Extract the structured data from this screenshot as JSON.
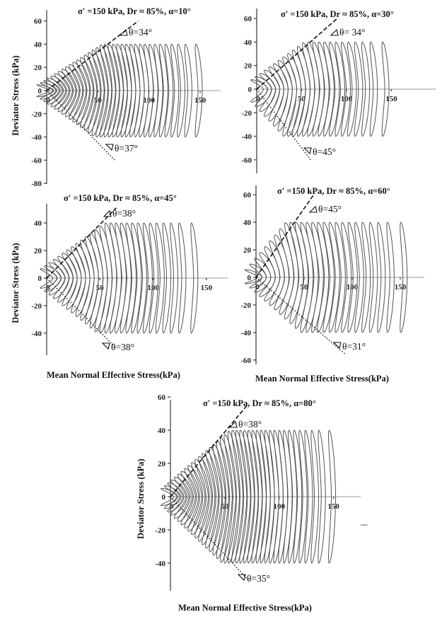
{
  "figure": {
    "x_axis_label": "Mean Normal  Effective Stress(kPa)",
    "y_axis_label": "Deviator Stress (kPa)"
  },
  "chart_data": [
    {
      "type": "line",
      "title": "σ' =150 kPa, Dr ≈ 85%, α=10°",
      "xlabel": "",
      "ylabel": "Deviator Stress (kPa)",
      "xlim": [
        0,
        170
      ],
      "ylim": [
        -80,
        70
      ],
      "x_ticks": [
        0,
        50,
        100,
        150
      ],
      "y_ticks": [
        60,
        40,
        20,
        0,
        -20,
        -40,
        -60,
        -80
      ],
      "cycles": {
        "count": 36,
        "p_start": 150,
        "p_end": 5,
        "q_amplitude": 40
      },
      "envelopes": [
        {
          "label": "θ=34°",
          "slope": 0.67
        },
        {
          "label": "θ=37°",
          "slope": -0.9
        }
      ]
    },
    {
      "type": "line",
      "title": "σ' =150 kPa, Dr ≈ 85%, α=30°",
      "xlabel": "",
      "ylabel": "",
      "xlim": [
        0,
        200
      ],
      "ylim": [
        -70,
        70
      ],
      "x_ticks": [
        0,
        50,
        100,
        150
      ],
      "y_ticks": [
        60,
        40,
        20,
        0,
        -20,
        -40,
        -60
      ],
      "cycles": {
        "count": 24,
        "p_start": 145,
        "p_end": 10,
        "q_amplitude": 40
      },
      "envelopes": [
        {
          "label": "θ= 34°",
          "slope": 0.67
        },
        {
          "label": "θ=45°",
          "slope": -1.0
        }
      ]
    },
    {
      "type": "line",
      "title": "σ' =150 kPa, Dr ≈ 85%, α=45°",
      "xlabel": "Mean Normal  Effective Stress(kPa)",
      "ylabel": "Deviator Stress (kPa)",
      "xlim": [
        0,
        170
      ],
      "ylim": [
        -55,
        55
      ],
      "x_ticks": [
        0,
        50,
        100,
        150
      ],
      "y_ticks": [
        40,
        20,
        0,
        -20,
        -40
      ],
      "cycles": {
        "count": 28,
        "p_start": 140,
        "p_end": 8,
        "q_amplitude": 40
      },
      "envelopes": [
        {
          "label": "θ=38°",
          "slope": 0.78
        },
        {
          "label": "θ=38°",
          "slope": -0.78
        }
      ]
    },
    {
      "type": "line",
      "title": "σ' =150 kPa, Dr ≈ 85%, α=60°",
      "xlabel": "Mean Normal  Effective Stress(kPa)",
      "ylabel": "",
      "xlim": [
        0,
        175
      ],
      "ylim": [
        -60,
        70
      ],
      "x_ticks": [
        0,
        50,
        100,
        150
      ],
      "y_ticks": [
        60,
        40,
        20,
        0,
        -20,
        -40,
        -60
      ],
      "cycles": {
        "count": 26,
        "p_start": 155,
        "p_end": 4,
        "q_amplitude": 40
      },
      "envelopes": [
        {
          "label": "θ=45°",
          "slope": 1.0
        },
        {
          "label": "θ=31°",
          "slope": -0.6
        }
      ]
    },
    {
      "type": "line",
      "title": "σ' =150 kPa, Dr ≈ 85%, α=80°",
      "xlabel": "Mean Normal  Effective Stress(kPa)",
      "ylabel": "Deviator Stress (kPa)",
      "xlim": [
        0,
        175
      ],
      "ylim": [
        -55,
        60
      ],
      "x_ticks": [
        0,
        50,
        100,
        150
      ],
      "y_ticks": [
        60,
        40,
        20,
        0,
        -20,
        -40
      ],
      "cycles": {
        "count": 40,
        "p_start": 150,
        "p_end": 5,
        "q_amplitude": 40
      },
      "envelopes": [
        {
          "label": "θ=38°",
          "slope": 0.78
        },
        {
          "label": "θ=35°",
          "slope": -0.7
        }
      ]
    }
  ]
}
